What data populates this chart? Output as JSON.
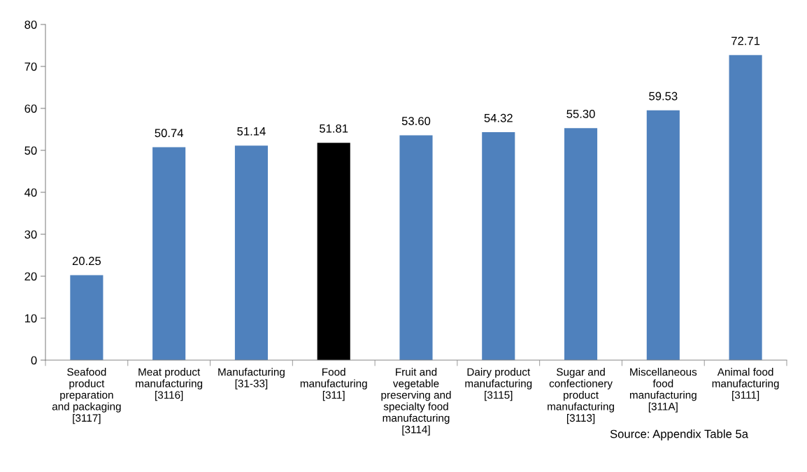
{
  "chart_data": {
    "type": "bar",
    "categories": [
      "Seafood\nproduct\npreparation\nand packaging\n[3117]",
      "Meat product\nmanufacturing\n[3116]",
      "Manufacturing\n[31-33]",
      "Food\nmanufacturing\n[311]",
      "Fruit and\nvegetable\npreserving and\nspecialty food\nmanufacturing\n[3114]",
      "Dairy product\nmanufacturing\n[3115]",
      "Sugar and\nconfectionery\nproduct\nmanufacturing\n[3113]",
      "Miscellaneous\nfood\nmanufacturing\n[311A]",
      "Animal food\nmanufacturing\n[3111]"
    ],
    "values": [
      20.25,
      50.74,
      51.14,
      51.81,
      53.6,
      54.32,
      55.3,
      59.53,
      72.71
    ],
    "value_labels": [
      "20.25",
      "50.74",
      "51.14",
      "51.81",
      "53.60",
      "54.32",
      "55.30",
      "59.53",
      "72.71"
    ],
    "colors": [
      "#4f81bd",
      "#4f81bd",
      "#4f81bd",
      "#000000",
      "#4f81bd",
      "#4f81bd",
      "#4f81bd",
      "#4f81bd",
      "#4f81bd"
    ],
    "ylim": [
      0,
      80
    ],
    "yticks": [
      0,
      10,
      20,
      30,
      40,
      50,
      60,
      70,
      80
    ],
    "grid": false,
    "legend": false,
    "annotations": [
      "Source: Appendix Table 5a"
    ]
  }
}
